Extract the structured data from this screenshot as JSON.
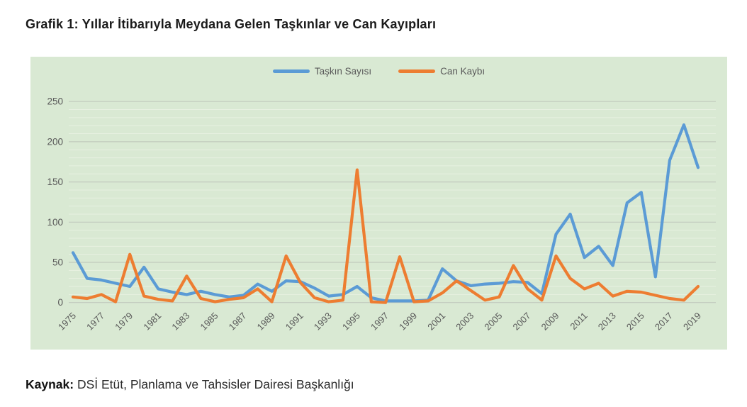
{
  "page": {
    "title": "Grafik 1: Yıllar İtibarıyla Meydana Gelen Taşkınlar ve Can Kayıpları",
    "source_label": "Kaynak:",
    "source_text": "DSİ Etüt, Planlama ve Tahsisler Dairesi Başkanlığı"
  },
  "chart_data": {
    "type": "line",
    "title": "Grafik 1: Yıllar İtibarıyla Meydana Gelen Taşkınlar ve Can Kayıpları",
    "x": [
      1975,
      1976,
      1977,
      1978,
      1979,
      1980,
      1981,
      1982,
      1983,
      1984,
      1985,
      1986,
      1987,
      1988,
      1989,
      1990,
      1991,
      1992,
      1993,
      1994,
      1995,
      1996,
      1997,
      1998,
      1999,
      2000,
      2001,
      2002,
      2003,
      2004,
      2005,
      2006,
      2007,
      2008,
      2009,
      2010,
      2011,
      2012,
      2013,
      2014,
      2015,
      2016,
      2017,
      2018,
      2019
    ],
    "series": [
      {
        "name": "Taşkın Sayısı",
        "color": "#5B9BD5",
        "values": [
          62,
          30,
          28,
          24,
          20,
          44,
          17,
          13,
          10,
          14,
          10,
          7,
          9,
          23,
          14,
          27,
          26,
          18,
          8,
          10,
          20,
          6,
          2,
          2,
          2,
          3,
          42,
          27,
          21,
          23,
          24,
          26,
          25,
          11,
          85,
          110,
          56,
          70,
          46,
          124,
          137,
          32,
          177,
          221,
          168
        ]
      },
      {
        "name": "Can Kaybı",
        "color": "#ED7D31",
        "values": [
          7,
          5,
          10,
          1,
          60,
          8,
          4,
          2,
          33,
          5,
          1,
          4,
          6,
          17,
          1,
          58,
          25,
          6,
          1,
          3,
          165,
          1,
          0,
          57,
          1,
          2,
          12,
          27,
          15,
          3,
          7,
          46,
          17,
          3,
          58,
          30,
          17,
          24,
          8,
          14,
          13,
          9,
          5,
          3,
          20
        ]
      }
    ],
    "xlabel": "",
    "ylabel": "",
    "ylim": [
      0,
      250
    ],
    "yticks": [
      0,
      50,
      100,
      150,
      200,
      250
    ],
    "minor_grid_interval": 10,
    "xtick_labels": [
      "1975",
      "1977",
      "1979",
      "1981",
      "1983",
      "1985",
      "1987",
      "1989",
      "1991",
      "1993",
      "1995",
      "1997",
      "1999",
      "2001",
      "2003",
      "2005",
      "2007",
      "2009",
      "2011",
      "2013",
      "2015",
      "2017",
      "2019"
    ],
    "grid": true,
    "legend_position": "top",
    "plot_bg_color": "#d9e9d3",
    "major_grid_color": "#c1cabd",
    "minor_grid_color": "#e7f1e1",
    "axis_text_color": "#595959"
  }
}
